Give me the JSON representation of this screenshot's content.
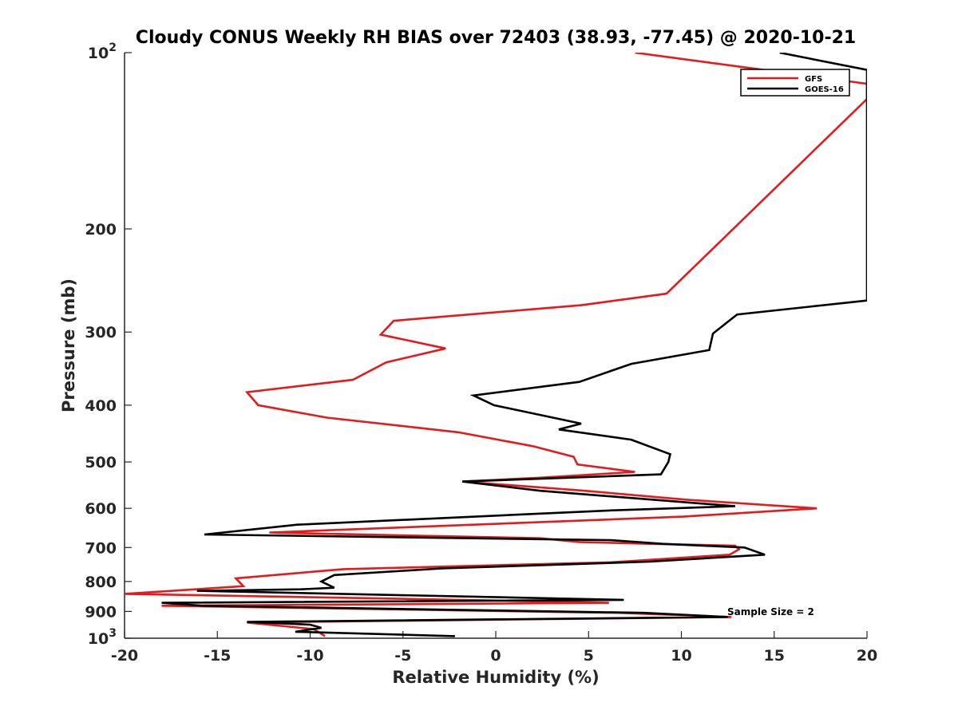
{
  "chart_data": {
    "type": "line",
    "title": "Cloudy CONUS Weekly RH BIAS over 72403 (38.93, -77.45) @ 2020-10-21",
    "xlabel": "Relative Humidity (%)",
    "ylabel": "Pressure (mb)",
    "xlim": [
      -20,
      20
    ],
    "ylim": [
      100,
      1000
    ],
    "yscale": "log",
    "y_reversed": true,
    "grid": false,
    "legend_position": "top-right",
    "xticks": [
      -20,
      -15,
      -10,
      -5,
      0,
      5,
      10,
      15,
      20
    ],
    "xtick_labels": [
      "-20",
      "-15",
      "-10",
      "-5",
      "0",
      "5",
      "10",
      "15",
      "20"
    ],
    "yticks": [
      100,
      200,
      300,
      400,
      500,
      600,
      700,
      800,
      900,
      1000
    ],
    "ytick_labels": [
      {
        "base": "10",
        "exp": "2"
      },
      {
        "base": "200",
        "exp": ""
      },
      {
        "base": "300",
        "exp": ""
      },
      {
        "base": "400",
        "exp": ""
      },
      {
        "base": "500",
        "exp": ""
      },
      {
        "base": "600",
        "exp": ""
      },
      {
        "base": "700",
        "exp": ""
      },
      {
        "base": "800",
        "exp": ""
      },
      {
        "base": "900",
        "exp": ""
      },
      {
        "base": "10",
        "exp": "3"
      }
    ],
    "annotation": "Sample Size = 2",
    "series": [
      {
        "name": "GFS",
        "color": "#e41a1c",
        "x": [
          7.5,
          20,
          20,
          9.2,
          4.6,
          -5.5,
          -6.2,
          -2.7,
          -5.9,
          -7.7,
          -13.4,
          -12.8,
          -9.1,
          -2.0,
          2.0,
          4.2,
          4.4,
          7.5,
          2.4,
          -1.8,
          4.8,
          10.3,
          17.3,
          10.1,
          -12.2,
          2.4,
          4.5,
          8.3,
          12.9,
          13.1,
          12.6,
          6.2,
          -8.2,
          -14.0,
          -13.6,
          -20.0,
          -2.0,
          6.1,
          -18.0,
          6.6,
          12.7,
          -13.4,
          -9.8,
          -9.2
        ],
        "y": [
          100,
          113,
          120,
          258,
          270,
          287,
          303,
          320,
          338,
          362,
          380,
          400,
          420,
          445,
          470,
          490,
          505,
          520,
          532,
          540,
          560,
          580,
          600,
          620,
          660,
          675,
          685,
          690,
          695,
          705,
          720,
          742,
          762,
          790,
          815,
          840,
          860,
          870,
          880,
          905,
          920,
          940,
          965,
          992
        ]
      },
      {
        "name": "GOES-16",
        "color": "#000000",
        "x": [
          15.3,
          20,
          20,
          13.0,
          11.8,
          11.7,
          11.5,
          7.3,
          4.5,
          -1.2,
          -0.1,
          4.6,
          3.4,
          7.3,
          9.4,
          9.3,
          8.9,
          -1.8,
          2.4,
          12.9,
          6.2,
          -10.7,
          -15.7,
          6.2,
          9.0,
          13.4,
          14.5,
          8.3,
          -2.9,
          -8.7,
          -9.4,
          -8.7,
          -10.5,
          -16.1,
          6.9,
          -18.0,
          -15.8,
          8.0,
          12.5,
          -13.4,
          -10.0,
          -9.4,
          -10.8,
          -2.2
        ],
        "y": [
          100,
          107,
          265,
          280,
          300,
          302,
          322,
          340,
          365,
          385,
          400,
          430,
          440,
          458,
          485,
          500,
          525,
          540,
          560,
          595,
          605,
          640,
          665,
          680,
          690,
          700,
          720,
          740,
          760,
          780,
          800,
          820,
          825,
          830,
          860,
          870,
          880,
          905,
          920,
          938,
          948,
          960,
          975,
          992
        ]
      }
    ]
  }
}
